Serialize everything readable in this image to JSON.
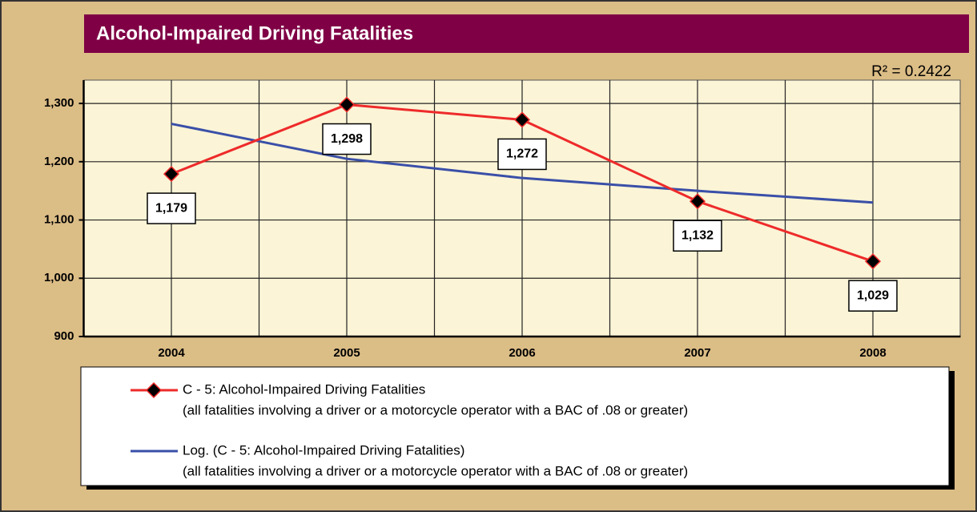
{
  "chart_data": {
    "type": "line",
    "title": "Alcohol-Impaired Driving Fatalities",
    "annotation": "R² = 0.2422",
    "categories": [
      "2004",
      "2005",
      "2006",
      "2007",
      "2008"
    ],
    "series": [
      {
        "name": "C - 5: Alcohol-Impaired Driving Fatalities",
        "note": "(all fatalities involving a driver or a motorcycle operator with a BAC of .08 or greater)",
        "color": "#ee2a2a",
        "marker": "diamond",
        "values": [
          1179,
          1298,
          1272,
          1132,
          1029
        ],
        "value_labels": [
          "1,179",
          "1,298",
          "1,272",
          "1,132",
          "1,029"
        ]
      },
      {
        "name": "Log. (C - 5: Alcohol-Impaired Driving Fatalities)",
        "note": "(all fatalities involving a driver or a motorcycle operator with a BAC of .08 or greater)",
        "color": "#3a4fa8",
        "values": [
          1265,
          1205,
          1172,
          1150,
          1130
        ]
      }
    ],
    "ylim": [
      900,
      1340
    ],
    "yticks": [
      {
        "value": 900,
        "label": "900"
      },
      {
        "value": 1000,
        "label": "1,000"
      },
      {
        "value": 1100,
        "label": "1,100"
      },
      {
        "value": 1200,
        "label": "1,200"
      },
      {
        "value": 1300,
        "label": "1,300"
      }
    ],
    "grid": true
  }
}
